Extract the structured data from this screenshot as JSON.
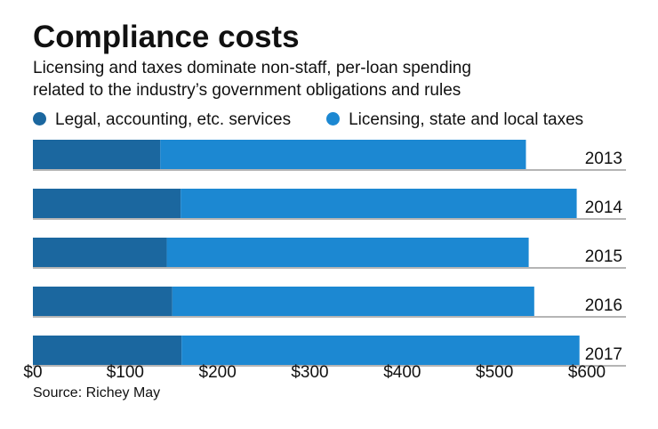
{
  "title": "Compliance costs",
  "subtitle_lines": [
    "Licensing and taxes dominate non-staff, per-loan spending",
    "related to the industry’s government obligations and rules"
  ],
  "source": "Source: Richey May",
  "chart_data": {
    "type": "bar",
    "stacked": true,
    "orientation": "horizontal",
    "title": "Compliance costs",
    "categories": [
      "2013",
      "2014",
      "2015",
      "2016",
      "2017"
    ],
    "series": [
      {
        "name": "Legal, accounting, etc. services",
        "color": "#1b679f",
        "values": [
          138,
          160,
          145,
          151,
          161
        ]
      },
      {
        "name": "Licensing, state and local taxes",
        "color": "#1c88d2",
        "values": [
          396,
          429,
          392,
          392,
          431
        ]
      }
    ],
    "xlim": [
      0,
      600
    ],
    "x_ticks": [
      "$0",
      "$100",
      "$200",
      "$300",
      "$400",
      "$500",
      "$600"
    ],
    "grid": false,
    "legend_placement": "top"
  }
}
